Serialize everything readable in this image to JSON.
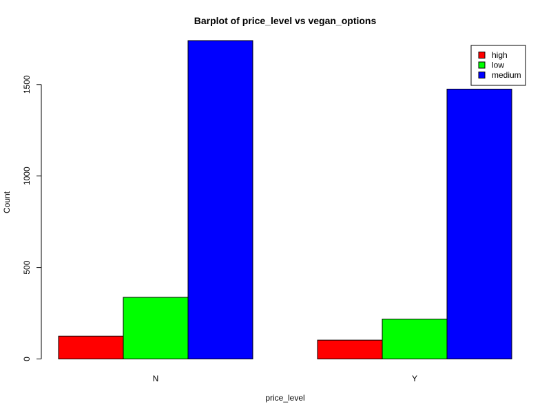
{
  "chart_data": {
    "type": "bar",
    "title": "Barplot of price_level vs vegan_options",
    "xlabel": "price_level",
    "ylabel": "Count",
    "categories": [
      "N",
      "Y"
    ],
    "series": [
      {
        "name": "high",
        "values": [
          125,
          103
        ],
        "color": "#ff0000"
      },
      {
        "name": "low",
        "values": [
          337,
          218
        ],
        "color": "#00ff00"
      },
      {
        "name": "medium",
        "values": [
          1740,
          1475
        ],
        "color": "#0000ff"
      }
    ],
    "y_ticks": [
      0,
      500,
      1000,
      1500
    ],
    "ylim": [
      0,
      1740
    ],
    "grid": false,
    "legend_position": "top-right",
    "bar_mode": "grouped"
  }
}
